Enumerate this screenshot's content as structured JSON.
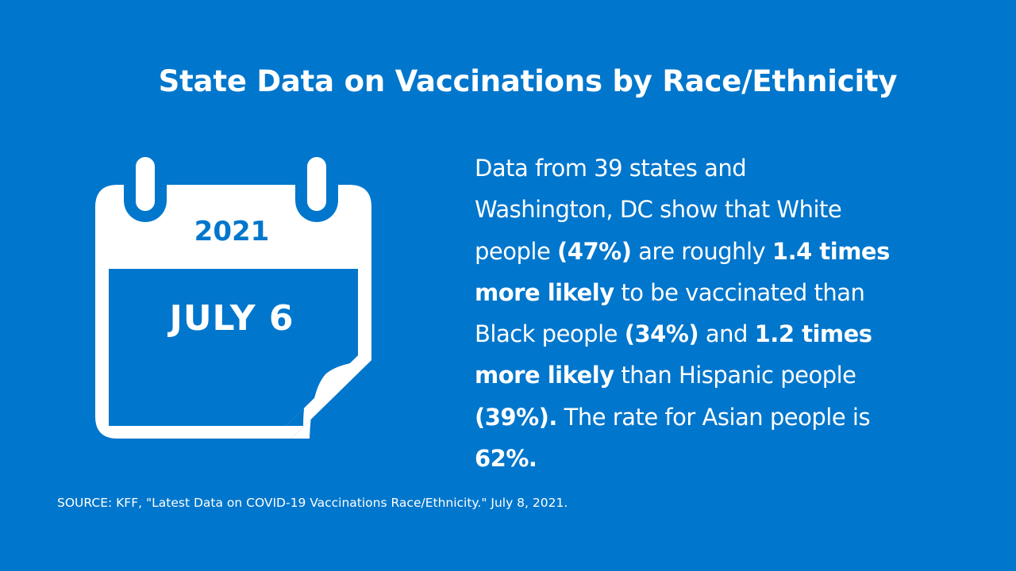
{
  "colors": {
    "background": "#0076CC",
    "foreground": "#FFFFFF"
  },
  "title": "State Data on Vaccinations by Race/Ethnicity",
  "calendar": {
    "icon": "calendar-icon",
    "year": "2021",
    "date": "JULY 6"
  },
  "body": {
    "lines": [
      [
        {
          "text": "Data from 39 states and",
          "bold": false
        }
      ],
      [
        {
          "text": "Washington, DC show that White",
          "bold": false
        }
      ],
      [
        {
          "text": "people ",
          "bold": false
        },
        {
          "text": "(47%)",
          "bold": true
        },
        {
          "text": " are roughly ",
          "bold": false
        },
        {
          "text": "1.4 times",
          "bold": true
        }
      ],
      [
        {
          "text": "more likely",
          "bold": true
        },
        {
          "text": " to be vaccinated than",
          "bold": false
        }
      ],
      [
        {
          "text": "Black people ",
          "bold": false
        },
        {
          "text": "(34%)",
          "bold": true
        },
        {
          "text": " and ",
          "bold": false
        },
        {
          "text": "1.2 times",
          "bold": true
        }
      ],
      [
        {
          "text": "more likely",
          "bold": true
        },
        {
          "text": " than Hispanic people",
          "bold": false
        }
      ],
      [
        {
          "text": "(39%).",
          "bold": true
        },
        {
          "text": " The rate for Asian people is",
          "bold": false
        }
      ],
      [
        {
          "text": "62%.",
          "bold": true
        }
      ]
    ]
  },
  "source": "SOURCE: KFF, \"Latest Data on COVID-19 Vaccinations Race/Ethnicity.\" July 8, 2021."
}
